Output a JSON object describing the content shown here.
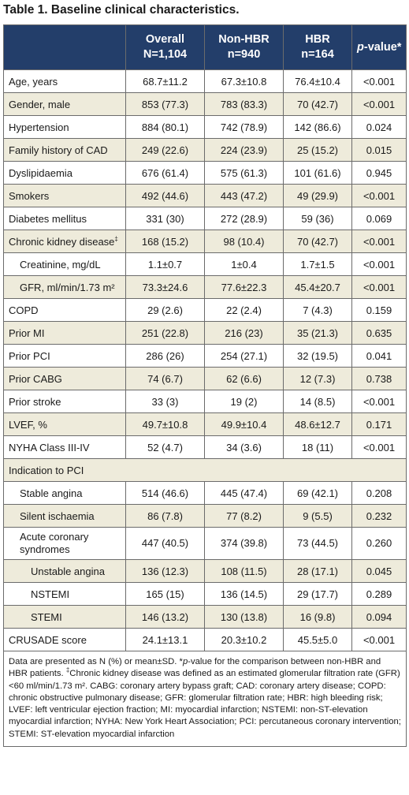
{
  "title": "Table 1. Baseline clinical characteristics.",
  "headers": {
    "overall_line1": "Overall",
    "overall_line2": "N=1,104",
    "nonhbr_line1": "Non-HBR",
    "nonhbr_line2": "n=940",
    "hbr_line1": "HBR",
    "hbr_line2": "n=164",
    "pvalue_p": "p",
    "pvalue_rest": "-value*"
  },
  "rows": [
    {
      "label": "Age, years",
      "overall": "68.7±11.2",
      "nonhbr": "67.3±10.8",
      "hbr": "76.4±10.4",
      "p": "<0.001"
    },
    {
      "label": "Gender, male",
      "overall": "853 (77.3)",
      "nonhbr": "783 (83.3)",
      "hbr": "70 (42.7)",
      "p": "<0.001"
    },
    {
      "label": "Hypertension",
      "overall": "884 (80.1)",
      "nonhbr": "742 (78.9)",
      "hbr": "142 (86.6)",
      "p": "0.024"
    },
    {
      "label": "Family history of CAD",
      "overall": "249 (22.6)",
      "nonhbr": "224 (23.9)",
      "hbr": "25 (15.2)",
      "p": "0.015"
    },
    {
      "label": "Dyslipidaemia",
      "overall": "676 (61.4)",
      "nonhbr": "575 (61.3)",
      "hbr": "101 (61.6)",
      "p": "0.945"
    },
    {
      "label": "Smokers",
      "overall": "492 (44.6)",
      "nonhbr": "443 (47.2)",
      "hbr": "49 (29.9)",
      "p": "<0.001"
    },
    {
      "label": "Diabetes mellitus",
      "overall": "331 (30)",
      "nonhbr": "272 (28.9)",
      "hbr": "59 (36)",
      "p": "0.069"
    },
    {
      "label": "Chronic kidney disease",
      "sup": "‡",
      "overall": "168 (15.2)",
      "nonhbr": "98 (10.4)",
      "hbr": "70 (42.7)",
      "p": "<0.001"
    },
    {
      "label": "Creatinine, mg/dL",
      "indent": 1,
      "overall": "1.1±0.7",
      "nonhbr": "1±0.4",
      "hbr": "1.7±1.5",
      "p": "<0.001"
    },
    {
      "label": "GFR, ml/min/1.73 m²",
      "indent": 1,
      "overall": "73.3±24.6",
      "nonhbr": "77.6±22.3",
      "hbr": "45.4±20.7",
      "p": "<0.001"
    },
    {
      "label": "COPD",
      "overall": "29 (2.6)",
      "nonhbr": "22 (2.4)",
      "hbr": "7 (4.3)",
      "p": "0.159"
    },
    {
      "label": "Prior MI",
      "overall": "251 (22.8)",
      "nonhbr": "216 (23)",
      "hbr": "35 (21.3)",
      "p": "0.635"
    },
    {
      "label": "Prior PCI",
      "overall": "286 (26)",
      "nonhbr": "254 (27.1)",
      "hbr": "32 (19.5)",
      "p": "0.041"
    },
    {
      "label": "Prior CABG",
      "overall": "74 (6.7)",
      "nonhbr": "62 (6.6)",
      "hbr": "12 (7.3)",
      "p": "0.738"
    },
    {
      "label": "Prior stroke",
      "overall": "33 (3)",
      "nonhbr": "19 (2)",
      "hbr": "14 (8.5)",
      "p": "<0.001"
    },
    {
      "label": "LVEF, %",
      "overall": "49.7±10.8",
      "nonhbr": "49.9±10.4",
      "hbr": "48.6±12.7",
      "p": "0.171"
    },
    {
      "label": "NYHA Class III-IV",
      "overall": "52 (4.7)",
      "nonhbr": "34 (3.6)",
      "hbr": "18 (11)",
      "p": "<0.001"
    },
    {
      "label": "Indication to PCI",
      "section": true
    },
    {
      "label": "Stable angina",
      "indent": 1,
      "overall": "514 (46.6)",
      "nonhbr": "445 (47.4)",
      "hbr": "69 (42.1)",
      "p": "0.208"
    },
    {
      "label": "Silent ischaemia",
      "indent": 1,
      "overall": "86 (7.8)",
      "nonhbr": "77 (8.2)",
      "hbr": "9 (5.5)",
      "p": "0.232"
    },
    {
      "label": "Acute coronary",
      "label2": "syndromes",
      "indent": 1,
      "tall": true,
      "overall": "447 (40.5)",
      "nonhbr": "374 (39.8)",
      "hbr": "73 (44.5)",
      "p": "0.260"
    },
    {
      "label": "Unstable angina",
      "indent": 2,
      "overall": "136 (12.3)",
      "nonhbr": "108 (11.5)",
      "hbr": "28 (17.1)",
      "p": "0.045"
    },
    {
      "label": "NSTEMI",
      "indent": 2,
      "overall": "165 (15)",
      "nonhbr": "136 (14.5)",
      "hbr": "29 (17.7)",
      "p": "0.289"
    },
    {
      "label": "STEMI",
      "indent": 2,
      "overall": "146 (13.2)",
      "nonhbr": "130 (13.8)",
      "hbr": "16 (9.8)",
      "p": "0.094"
    },
    {
      "label": "CRUSADE score",
      "overall": "24.1±13.1",
      "nonhbr": "20.3±10.2",
      "hbr": "45.5±5.0",
      "p": "<0.001"
    }
  ],
  "footnote": {
    "part1": "Data are presented as N (%) or mean±SD. *",
    "part1_italic": "p",
    "part2": "-value for the comparison between non-HBR and HBR patients. ",
    "sup": "‡",
    "part3": "Chronic kidney disease was defined as an estimated glomerular filtration rate (GFR) <60 ml/min/1.73 m². CABG: coronary artery bypass graft; CAD: coronary artery disease; COPD: chronic obstructive pulmonary disease; GFR: glomerular filtration rate; HBR: high bleeding risk; LVEF: left ventricular ejection fraction; MI: myocardial infarction; NSTEMI: non-ST-elevation myocardial infarction; NYHA: New York Heart Association; PCI: percutaneous coronary intervention; STEMI: ST-elevation myocardial infarction"
  },
  "colors": {
    "header_bg": "#233e6a",
    "stripe_bg": "#eeebdb",
    "border": "#6b6b6b"
  }
}
